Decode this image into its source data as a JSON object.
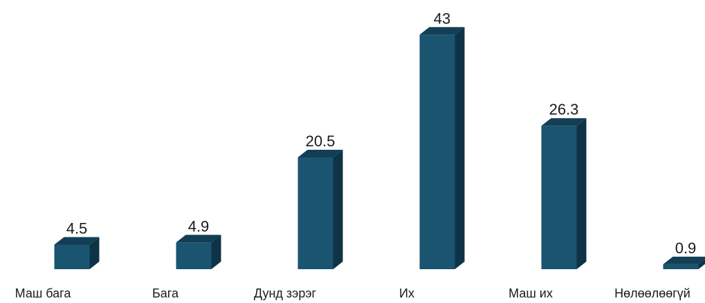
{
  "chart_data": {
    "type": "bar",
    "categories": [
      "Маш бага",
      "Бага",
      "Дунд зэрэг",
      "Их",
      "Маш их",
      "Нөлөөлөөгүй"
    ],
    "values": [
      4.5,
      4.9,
      20.5,
      43,
      26.3,
      0.9
    ],
    "value_labels": [
      "4.5",
      "4.9",
      "20.5",
      "43",
      "26.3",
      "0.9"
    ],
    "style": "3d-column",
    "grid": false,
    "legend": "none"
  },
  "colors": {
    "front": "#1a5470",
    "top": "#123f55",
    "side": "#0e3347",
    "text": "#1a1a1a",
    "background": "#ffffff"
  }
}
